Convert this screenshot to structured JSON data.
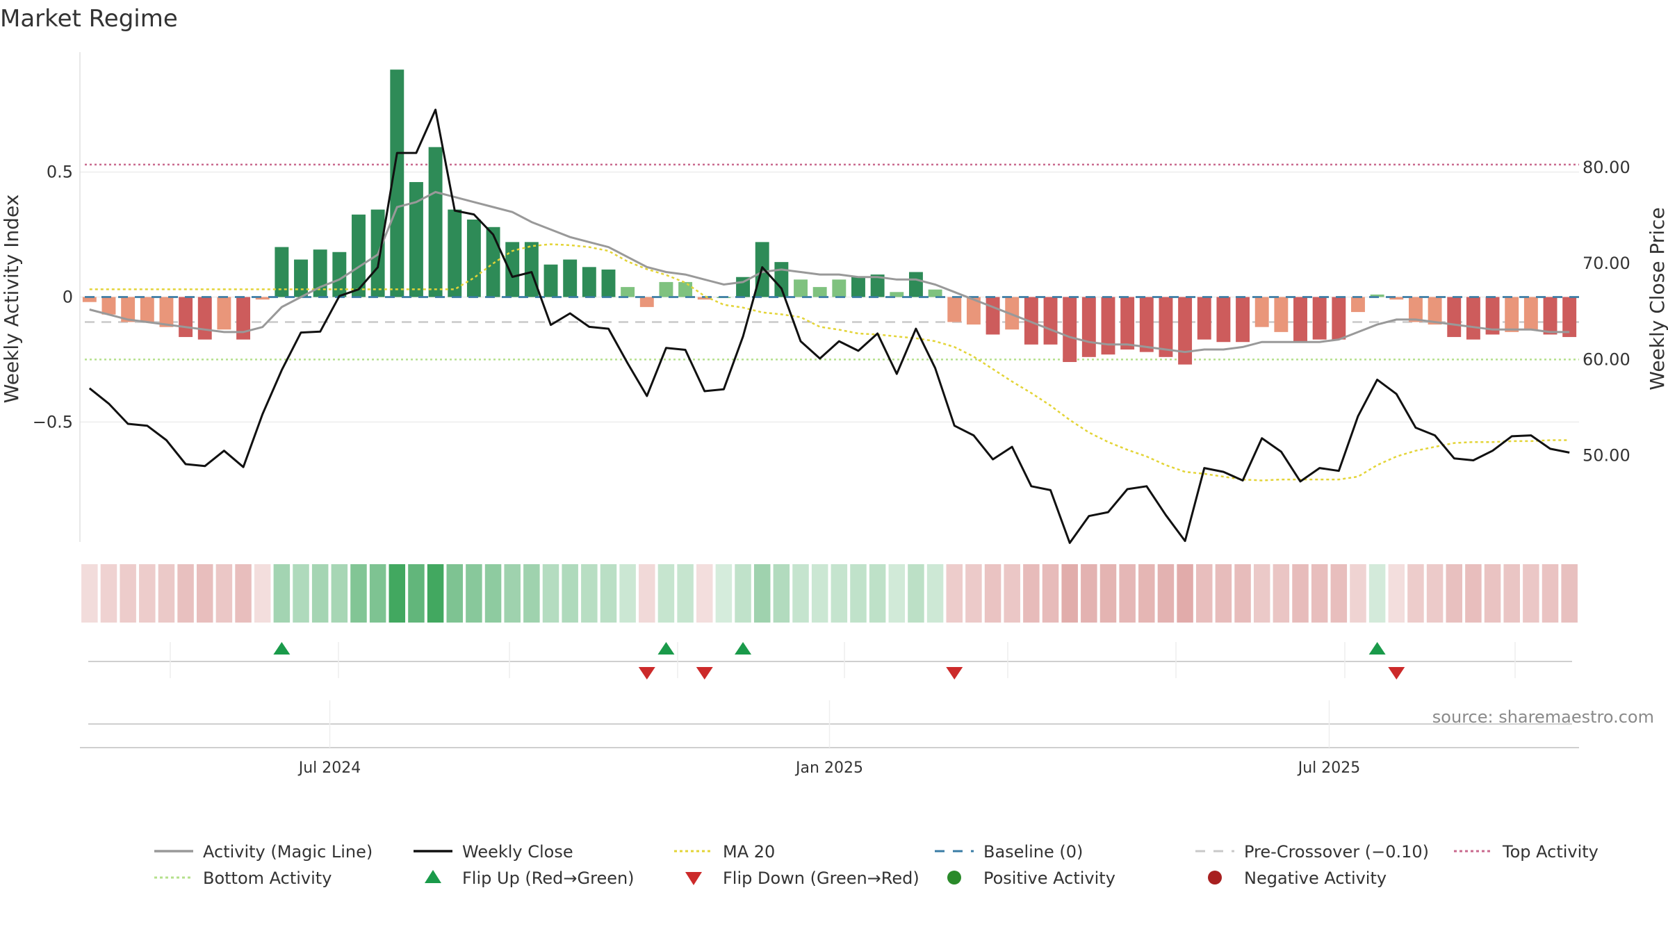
{
  "chart_data": {
    "type": "bar",
    "title": "Market Regime",
    "ylabel_left": "Weekly Activity Index",
    "ylabel_right": "Weekly Close Price",
    "source": "source: sharemaestro.com",
    "ylim_left": [
      -0.98,
      0.98
    ],
    "ylim_right": [
      41,
      92
    ],
    "left_ticks": [
      {
        "value": 0.5,
        "label": "0.5"
      },
      {
        "value": 0,
        "label": "0"
      },
      {
        "value": -0.5,
        "label": "−0.5"
      }
    ],
    "right_ticks": [
      {
        "value": 80,
        "label": "80.00"
      },
      {
        "value": 70,
        "label": "70.00"
      },
      {
        "value": 60,
        "label": "60.00"
      },
      {
        "value": 50,
        "label": "50.00"
      }
    ],
    "x_ticks": [
      {
        "week": 13,
        "label": "Jul 2024"
      },
      {
        "week": 39,
        "label": "Jan 2025"
      },
      {
        "week": 65,
        "label": "Jul 2025"
      }
    ],
    "reference_lines": {
      "baseline": 0,
      "pre_crossover": -0.1,
      "top_activity": 0.53,
      "bottom_activity": -0.25
    },
    "weeks": 78,
    "activity": [
      -0.02,
      -0.07,
      -0.1,
      -0.1,
      -0.12,
      -0.16,
      -0.17,
      -0.13,
      -0.17,
      -0.01,
      0.2,
      0.15,
      0.19,
      0.18,
      0.33,
      0.35,
      0.91,
      0.46,
      0.6,
      0.35,
      0.31,
      0.28,
      0.22,
      0.22,
      0.13,
      0.15,
      0.12,
      0.11,
      0.04,
      -0.04,
      0.06,
      0.06,
      -0.01,
      0.0,
      0.08,
      0.22,
      0.14,
      0.07,
      0.04,
      0.07,
      0.08,
      0.09,
      0.02,
      0.1,
      0.03,
      -0.1,
      -0.11,
      -0.15,
      -0.13,
      -0.19,
      -0.19,
      -0.26,
      -0.24,
      -0.23,
      -0.21,
      -0.22,
      -0.24,
      -0.27,
      -0.17,
      -0.18,
      -0.18,
      -0.12,
      -0.14,
      -0.18,
      -0.17,
      -0.17,
      -0.06,
      0.01,
      -0.01,
      -0.1,
      -0.11,
      -0.16,
      -0.17,
      -0.15,
      -0.14,
      -0.13,
      -0.15,
      -0.16
    ],
    "magic_line": [
      -0.05,
      -0.07,
      -0.09,
      -0.1,
      -0.11,
      -0.12,
      -0.13,
      -0.14,
      -0.14,
      -0.12,
      -0.04,
      0.0,
      0.04,
      0.07,
      0.12,
      0.17,
      0.36,
      0.38,
      0.42,
      0.4,
      0.38,
      0.36,
      0.34,
      0.3,
      0.27,
      0.24,
      0.22,
      0.2,
      0.16,
      0.12,
      0.1,
      0.09,
      0.07,
      0.05,
      0.06,
      0.1,
      0.11,
      0.1,
      0.09,
      0.09,
      0.08,
      0.08,
      0.07,
      0.07,
      0.05,
      0.02,
      -0.01,
      -0.04,
      -0.07,
      -0.1,
      -0.13,
      -0.16,
      -0.18,
      -0.19,
      -0.19,
      -0.2,
      -0.21,
      -0.22,
      -0.21,
      -0.21,
      -0.2,
      -0.18,
      -0.18,
      -0.18,
      -0.18,
      -0.17,
      -0.14,
      -0.11,
      -0.09,
      -0.09,
      -0.1,
      -0.11,
      -0.12,
      -0.13,
      -0.13,
      -0.13,
      -0.14,
      -0.14
    ],
    "weekly_close": [
      57,
      55.4,
      53.3,
      53.1,
      51.6,
      49.1,
      48.9,
      50.5,
      48.8,
      54.3,
      58.9,
      62.8,
      62.9,
      66.6,
      67.3,
      69.6,
      81.5,
      81.5,
      86,
      75.5,
      75.1,
      73,
      68.6,
      69.1,
      63.6,
      64.8,
      63.4,
      63.2,
      59.6,
      56.2,
      61.2,
      61,
      56.7,
      56.9,
      62.4,
      69.6,
      67.4,
      61.9,
      60.1,
      61.9,
      60.9,
      62.7,
      58.5,
      63.2,
      59.1,
      53.1,
      52.1,
      49.6,
      50.9,
      46.8,
      46.4,
      40.9,
      43.7,
      44.1,
      46.5,
      46.8,
      43.8,
      41.1,
      48.7,
      48.3,
      47.4,
      51.8,
      50.4,
      47.3,
      48.7,
      48.4,
      54.1,
      57.9,
      56.4,
      52.9,
      52.1,
      49.7,
      49.5,
      50.5,
      52,
      52.1,
      50.7,
      50.3
    ],
    "ma20": [
      67.3,
      67.3,
      67.3,
      67.3,
      67.3,
      67.3,
      67.3,
      67.3,
      67.3,
      67.3,
      67.3,
      67.3,
      67.3,
      67.3,
      67.3,
      67.3,
      67.3,
      67.3,
      67.3,
      67.3,
      68.5,
      70,
      71.3,
      71.8,
      72,
      71.9,
      71.7,
      71.3,
      70.2,
      69.4,
      68.8,
      68,
      66.6,
      65.7,
      65.4,
      64.9,
      64.7,
      64.4,
      63.4,
      63.1,
      62.7,
      62.6,
      62.4,
      62.2,
      61.9,
      61.3,
      60.3,
      59,
      57.7,
      56.5,
      55.2,
      53.7,
      52.4,
      51.4,
      50.6,
      49.9,
      49,
      48.3,
      48.1,
      47.8,
      47.5,
      47.4,
      47.5,
      47.5,
      47.5,
      47.5,
      47.8,
      49,
      49.9,
      50.5,
      50.9,
      51.3,
      51.4,
      51.4,
      51.5,
      51.5,
      51.6,
      51.6
    ],
    "flip_up_weeks": [
      10,
      30,
      34,
      67
    ],
    "flip_down_weeks": [
      29,
      32,
      45,
      68
    ],
    "colors": {
      "positive_strong": "#2e8b57",
      "positive_light": "#7fc27f",
      "negative_strong": "#cd5c5c",
      "negative_light": "#e9967a",
      "magic_line": "#999999",
      "weekly_close": "#111111",
      "ma20": "#e3d437",
      "baseline": "#3a7ca5",
      "pre_crossover": "#c8c8c8",
      "top_activity": "#c96a8e",
      "bottom_activity": "#b5e08c",
      "flip_up": "#1a9a4a",
      "flip_down": "#cc2a2a",
      "positive_dot": "#2a8a2a",
      "negative_dot": "#a82020"
    },
    "legend": [
      {
        "label": "Activity (Magic Line)",
        "style": "solid-line",
        "color": "#999999"
      },
      {
        "label": "Weekly Close",
        "style": "solid-line",
        "color": "#111111"
      },
      {
        "label": "MA 20",
        "style": "dotted-line",
        "color": "#e3d437"
      },
      {
        "label": "Baseline (0)",
        "style": "dashed-line",
        "color": "#3a7ca5"
      },
      {
        "label": "Pre-Crossover (−0.10)",
        "style": "dashed-line",
        "color": "#c8c8c8"
      },
      {
        "label": "Top Activity",
        "style": "dotted-line",
        "color": "#c96a8e"
      },
      {
        "label": "Bottom Activity",
        "style": "dotted-line",
        "color": "#b5e08c"
      },
      {
        "label": "Flip Up (Red→Green)",
        "style": "triangle-up",
        "color": "#1a9a4a"
      },
      {
        "label": "Flip Down (Green→Red)",
        "style": "triangle-down",
        "color": "#cc2a2a"
      },
      {
        "label": "Positive Activity",
        "style": "dot",
        "color": "#2a8a2a"
      },
      {
        "label": "Negative Activity",
        "style": "dot",
        "color": "#a82020"
      }
    ]
  }
}
